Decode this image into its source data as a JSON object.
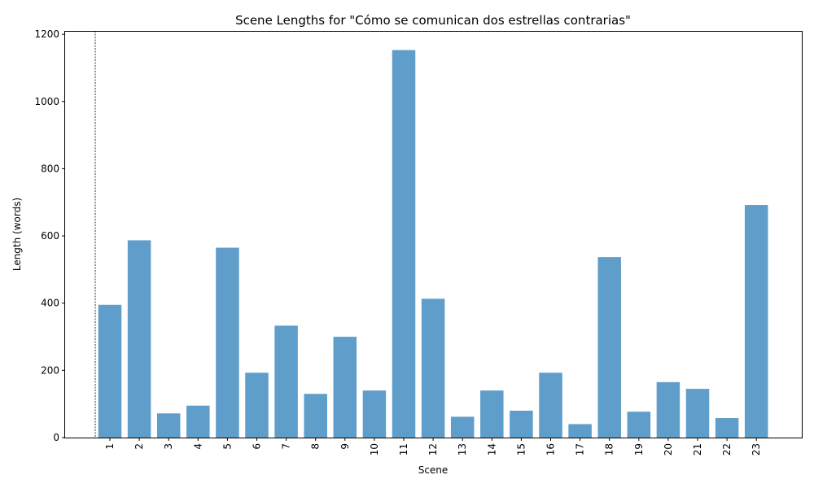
{
  "chart_data": {
    "type": "bar",
    "title": "Scene Lengths for \"Cómo se comunican dos estrellas contrarias\"",
    "xlabel": "Scene",
    "ylabel": "Length (words)",
    "ylim": [
      0,
      1210
    ],
    "yticks": [
      0,
      200,
      400,
      600,
      800,
      1000,
      1200
    ],
    "grid": false,
    "bar_color": "#5f9ecb",
    "categories": [
      "1",
      "2",
      "3",
      "4",
      "5",
      "6",
      "7",
      "8",
      "9",
      "10",
      "11",
      "12",
      "13",
      "14",
      "15",
      "16",
      "17",
      "18",
      "19",
      "20",
      "21",
      "22",
      "23"
    ],
    "values": [
      395,
      587,
      72,
      95,
      565,
      193,
      333,
      130,
      300,
      140,
      1153,
      413,
      62,
      140,
      80,
      193,
      40,
      537,
      77,
      165,
      145,
      58,
      692
    ],
    "marker": {
      "style": "dashed-vertical-line",
      "color": "#000000"
    }
  }
}
